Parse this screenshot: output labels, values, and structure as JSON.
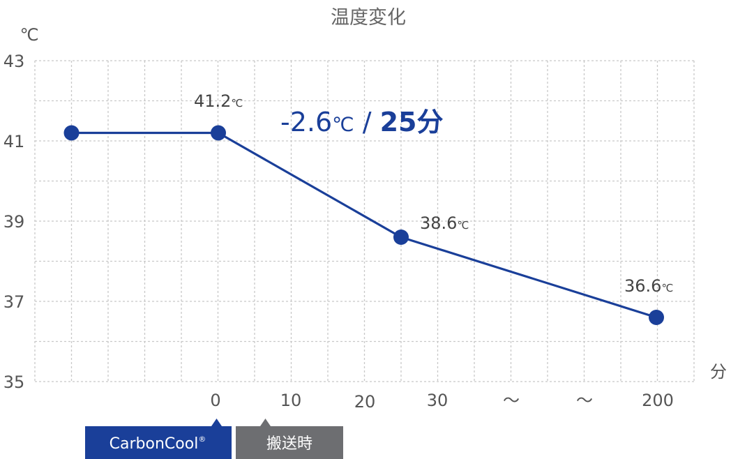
{
  "chart_data": {
    "type": "line",
    "title": "温度変化",
    "ylabel": "℃",
    "xlabel": "分",
    "ylim": [
      35,
      43
    ],
    "y_ticks": [
      "35",
      "37",
      "39",
      "41",
      "43"
    ],
    "x_tick_labels": [
      "0",
      "10",
      "20",
      "30",
      "～",
      "～",
      "200"
    ],
    "grid": true,
    "series": [
      {
        "x": [
          "",
          "0",
          "25",
          "200"
        ],
        "values": [
          41.2,
          41.2,
          38.6,
          36.6
        ],
        "labels": [
          "",
          "41.2",
          "38.6",
          "36.6"
        ],
        "color": "#1a3f99"
      }
    ],
    "value_unit": "℃",
    "annotation": {
      "value": "-2.6",
      "unit": "℃",
      "sep": " / ",
      "duration": "25分"
    },
    "phases": [
      {
        "label": "CarbonCool",
        "mark": "®",
        "color": "#1a3f99"
      },
      {
        "label": "搬送時",
        "color": "#6d6e71"
      }
    ]
  }
}
